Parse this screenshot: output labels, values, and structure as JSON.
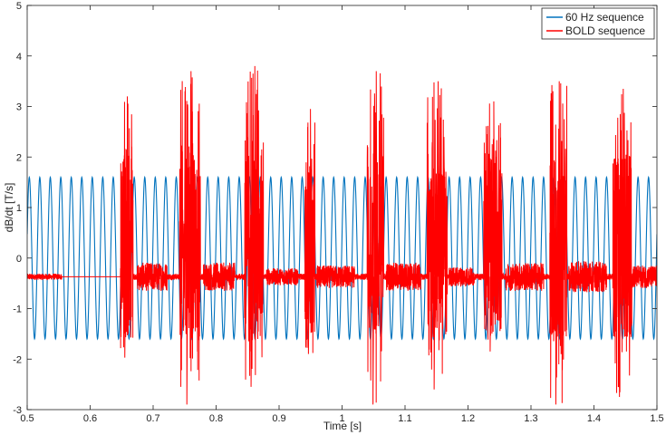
{
  "chart_data": {
    "type": "line",
    "title": "",
    "xlabel": "Time [s]",
    "ylabel": "dB/dt [T/s]",
    "xlim": [
      0.5,
      1.5
    ],
    "ylim": [
      -3,
      5
    ],
    "xticks": [
      0.5,
      0.6,
      0.7,
      0.8,
      0.9,
      1,
      1.1,
      1.2,
      1.3,
      1.4,
      1.5
    ],
    "xtick_labels": [
      "0.5",
      "0.6",
      "0.7",
      "0.8",
      "0.9",
      "1",
      "1.1",
      "1.2",
      "1.3",
      "1.4",
      "1.5"
    ],
    "yticks": [
      -3,
      -2,
      -1,
      0,
      1,
      2,
      3,
      4,
      5
    ],
    "ytick_labels": [
      "-3",
      "-2",
      "-1",
      "0",
      "1",
      "2",
      "3",
      "4",
      "5"
    ],
    "grid": false,
    "legend_position": "top-right",
    "series": [
      {
        "name": "60 Hz sequence",
        "color": "#0072BD",
        "kind": "sinusoid",
        "frequency_hz": 60,
        "amplitude": 1.6,
        "offset": 0
      },
      {
        "name": "BOLD sequence",
        "color": "#FF0000",
        "kind": "pulse-train",
        "baseline": -0.37,
        "flat_segment": [
          0.555,
          0.648
        ],
        "bursts": [
          {
            "start": 0.648,
            "end": 0.668,
            "peak": 3.2,
            "trough": -1.97
          },
          {
            "start": 0.742,
            "end": 0.775,
            "peak": 3.7,
            "trough": -2.9
          },
          {
            "start": 0.845,
            "end": 0.875,
            "peak": 3.8,
            "trough": -2.55
          },
          {
            "start": 0.941,
            "end": 0.957,
            "peak": 2.95,
            "trough": -1.9
          },
          {
            "start": 1.04,
            "end": 1.066,
            "peak": 3.7,
            "trough": -2.9
          },
          {
            "start": 1.135,
            "end": 1.167,
            "peak": 3.5,
            "trough": -2.6
          },
          {
            "start": 1.225,
            "end": 1.254,
            "peak": 3.1,
            "trough": -1.85
          },
          {
            "start": 1.33,
            "end": 1.357,
            "peak": 3.5,
            "trough": -2.9
          },
          {
            "start": 1.43,
            "end": 1.46,
            "peak": 3.35,
            "trough": -2.75
          }
        ],
        "noise_segments": [
          {
            "start": 0.675,
            "end": 0.722,
            "amplitude": 0.2
          },
          {
            "start": 0.78,
            "end": 0.83,
            "amplitude": 0.2
          },
          {
            "start": 0.88,
            "end": 0.93,
            "amplitude": 0.12
          },
          {
            "start": 0.96,
            "end": 1.02,
            "amplitude": 0.16
          },
          {
            "start": 1.07,
            "end": 1.125,
            "amplitude": 0.2
          },
          {
            "start": 1.17,
            "end": 1.21,
            "amplitude": 0.14
          },
          {
            "start": 1.26,
            "end": 1.32,
            "amplitude": 0.2
          },
          {
            "start": 1.36,
            "end": 1.42,
            "amplitude": 0.22
          },
          {
            "start": 1.46,
            "end": 1.5,
            "amplitude": 0.16
          }
        ]
      }
    ]
  }
}
